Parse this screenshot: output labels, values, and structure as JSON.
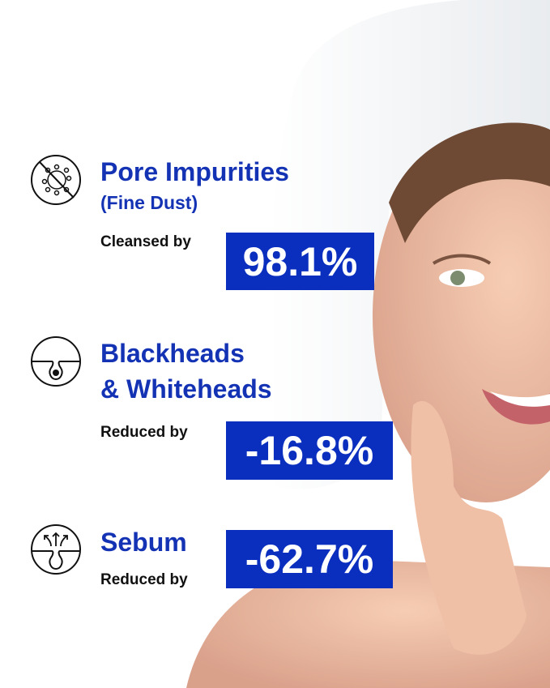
{
  "colors": {
    "accent": "#0a2fbf",
    "title": "#1433b4",
    "text": "#111111"
  },
  "claims": [
    {
      "icon": "virus-crossed-icon",
      "title": "Pore Impurities",
      "subtitle": "(Fine Dust)",
      "label": "Cleansed by",
      "value": "98.1%"
    },
    {
      "icon": "blackhead-pore-icon",
      "title_line1": "Blackheads",
      "title_line2": "& Whiteheads",
      "label": "Reduced by",
      "value": "-16.8%"
    },
    {
      "icon": "sebum-pore-icon",
      "title": "Sebum",
      "label": "Reduced by",
      "value": "-62.7%"
    }
  ]
}
